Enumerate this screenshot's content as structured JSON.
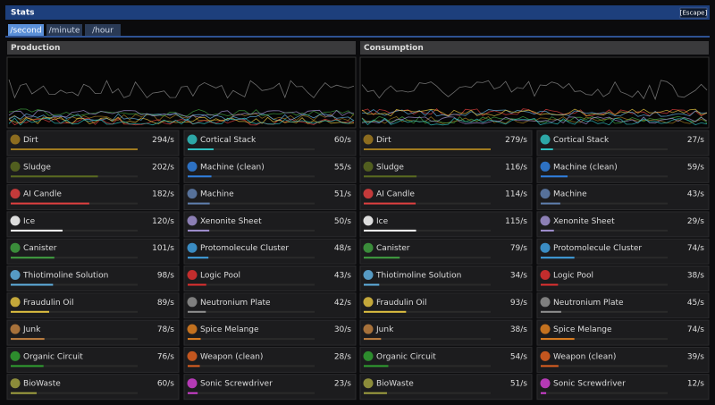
{
  "window": {
    "title": "Stats",
    "close_button": "[Escape]"
  },
  "tabs": [
    "/second",
    "/minute",
    "/hour"
  ],
  "active_tab": 0,
  "panels": [
    {
      "title": "Production",
      "items": [
        {
          "name": "Dirt",
          "color": "#a07a20",
          "rate": {
            "value": 294,
            "label": "294/s"
          }
        },
        {
          "name": "Sludge",
          "color": "#5a6a20",
          "rate": {
            "value": 202,
            "label": "202/s"
          }
        },
        {
          "name": "AI Candle",
          "color": "#e04040",
          "rate": {
            "value": 182,
            "label": "182/s"
          }
        },
        {
          "name": "Ice",
          "color": "#ffffff",
          "rate": {
            "value": 120,
            "label": "120/s"
          }
        },
        {
          "name": "Canister",
          "color": "#40a040",
          "rate": {
            "value": 101,
            "label": "101/s"
          }
        },
        {
          "name": "Thiotimoline Solution",
          "color": "#60b0e0",
          "rate": {
            "value": 98,
            "label": "98/s"
          }
        },
        {
          "name": "Fraudulin Oil",
          "color": "#e0c040",
          "rate": {
            "value": 89,
            "label": "89/s"
          }
        },
        {
          "name": "Junk",
          "color": "#c08040",
          "rate": {
            "value": 78,
            "label": "78/s"
          }
        },
        {
          "name": "Organic Circuit",
          "color": "#30a030",
          "rate": {
            "value": 76,
            "label": "76/s"
          }
        },
        {
          "name": "BioWaste",
          "color": "#a0a040",
          "rate": {
            "value": 60,
            "label": "60/s"
          }
        },
        {
          "name": "Cortical Stack",
          "color": "#30c0c0",
          "rate": {
            "value": 60,
            "label": "60/s"
          }
        },
        {
          "name": "Machine (clean)",
          "color": "#3080e0",
          "rate": {
            "value": 55,
            "label": "55/s"
          }
        },
        {
          "name": "Machine",
          "color": "#6080b0",
          "rate": {
            "value": 51,
            "label": "51/s"
          }
        },
        {
          "name": "Xenonite Sheet",
          "color": "#a090d0",
          "rate": {
            "value": 50,
            "label": "50/s"
          }
        },
        {
          "name": "Protomolecule Cluster",
          "color": "#40a0e0",
          "rate": {
            "value": 48,
            "label": "48/s"
          }
        },
        {
          "name": "Logic Pool",
          "color": "#e03030",
          "rate": {
            "value": 43,
            "label": "43/s"
          }
        },
        {
          "name": "Neutronium Plate",
          "color": "#909090",
          "rate": {
            "value": 42,
            "label": "42/s"
          }
        },
        {
          "name": "Spice Melange",
          "color": "#e08020",
          "rate": {
            "value": 30,
            "label": "30/s"
          }
        },
        {
          "name": "Weapon (clean)",
          "color": "#e06020",
          "rate": {
            "value": 28,
            "label": "28/s"
          }
        },
        {
          "name": "Sonic Screwdriver",
          "color": "#d040d0",
          "rate": {
            "value": 23,
            "label": "23/s"
          }
        }
      ]
    },
    {
      "title": "Consumption",
      "items": [
        {
          "name": "Dirt",
          "color": "#a07a20",
          "rate": {
            "value": 279,
            "label": "279/s"
          }
        },
        {
          "name": "Sludge",
          "color": "#5a6a20",
          "rate": {
            "value": 116,
            "label": "116/s"
          }
        },
        {
          "name": "AI Candle",
          "color": "#e04040",
          "rate": {
            "value": 114,
            "label": "114/s"
          }
        },
        {
          "name": "Ice",
          "color": "#ffffff",
          "rate": {
            "value": 115,
            "label": "115/s"
          }
        },
        {
          "name": "Canister",
          "color": "#40a040",
          "rate": {
            "value": 79,
            "label": "79/s"
          }
        },
        {
          "name": "Thiotimoline Solution",
          "color": "#60b0e0",
          "rate": {
            "value": 34,
            "label": "34/s"
          }
        },
        {
          "name": "Fraudulin Oil",
          "color": "#e0c040",
          "rate": {
            "value": 93,
            "label": "93/s"
          }
        },
        {
          "name": "Junk",
          "color": "#c08040",
          "rate": {
            "value": 38,
            "label": "38/s"
          }
        },
        {
          "name": "Organic Circuit",
          "color": "#30a030",
          "rate": {
            "value": 54,
            "label": "54/s"
          }
        },
        {
          "name": "BioWaste",
          "color": "#a0a040",
          "rate": {
            "value": 51,
            "label": "51/s"
          }
        },
        {
          "name": "Cortical Stack",
          "color": "#30c0c0",
          "rate": {
            "value": 27,
            "label": "27/s"
          }
        },
        {
          "name": "Machine (clean)",
          "color": "#3080e0",
          "rate": {
            "value": 59,
            "label": "59/s"
          }
        },
        {
          "name": "Machine",
          "color": "#6080b0",
          "rate": {
            "value": 43,
            "label": "43/s"
          }
        },
        {
          "name": "Xenonite Sheet",
          "color": "#a090d0",
          "rate": {
            "value": 29,
            "label": "29/s"
          }
        },
        {
          "name": "Protomolecule Cluster",
          "color": "#40a0e0",
          "rate": {
            "value": 74,
            "label": "74/s"
          }
        },
        {
          "name": "Logic Pool",
          "color": "#e03030",
          "rate": {
            "value": 38,
            "label": "38/s"
          }
        },
        {
          "name": "Neutronium Plate",
          "color": "#909090",
          "rate": {
            "value": 45,
            "label": "45/s"
          }
        },
        {
          "name": "Spice Melange",
          "color": "#e08020",
          "rate": {
            "value": 74,
            "label": "74/s"
          }
        },
        {
          "name": "Weapon (clean)",
          "color": "#e06020",
          "rate": {
            "value": 39,
            "label": "39/s"
          }
        },
        {
          "name": "Sonic Screwdriver",
          "color": "#d040d0",
          "rate": {
            "value": 12,
            "label": "12/s"
          }
        }
      ]
    }
  ]
}
